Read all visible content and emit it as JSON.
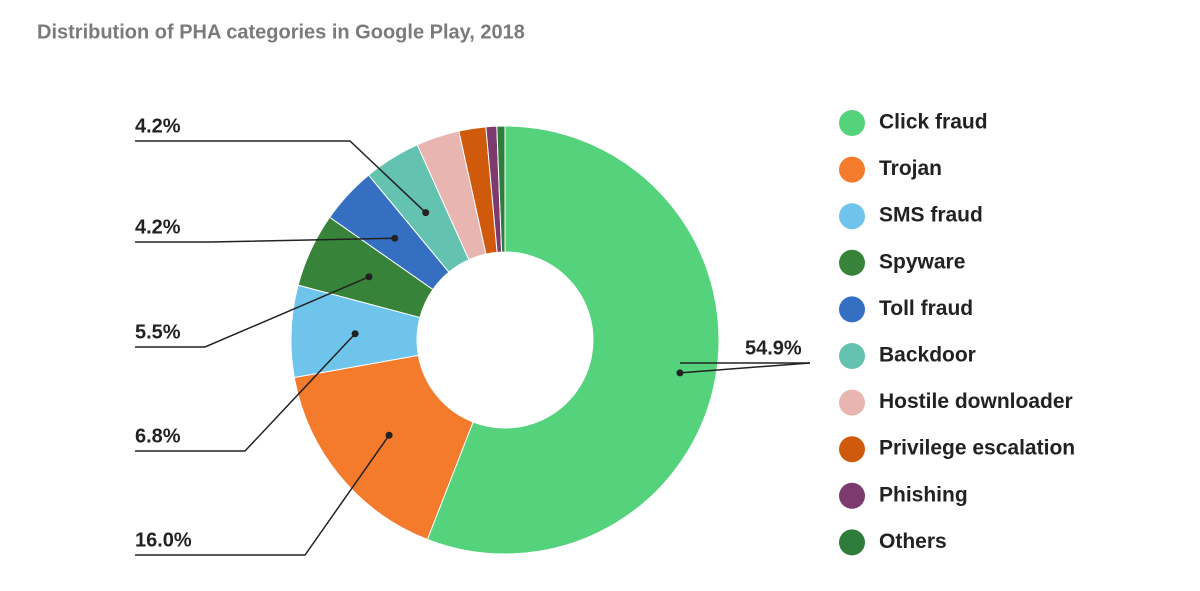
{
  "chart_data": {
    "type": "donut",
    "title": "Distribution of PHA categories in Google Play, 2018",
    "categories": [
      "Click fraud",
      "Trojan",
      "SMS fraud",
      "Spyware",
      "Toll fraud",
      "Backdoor",
      "Hostile downloader",
      "Privilege escalation",
      "Phishing",
      "Others"
    ],
    "values": [
      54.9,
      16.0,
      6.8,
      5.5,
      4.2,
      4.2,
      3.2,
      2.0,
      0.8,
      0.6
    ],
    "value_labels": [
      "54.9%",
      "16.0%",
      "6.8%",
      "5.5%",
      "4.2%",
      "4.2%",
      null,
      null,
      null,
      null
    ],
    "colors": [
      "#54d37c",
      "#f47a2c",
      "#6ec4ea",
      "#37833a",
      "#356fc2",
      "#64c3b0",
      "#e8b5b0",
      "#cf5a0b",
      "#7c3a6f",
      "#2f7d3a"
    ],
    "legend": "right"
  }
}
